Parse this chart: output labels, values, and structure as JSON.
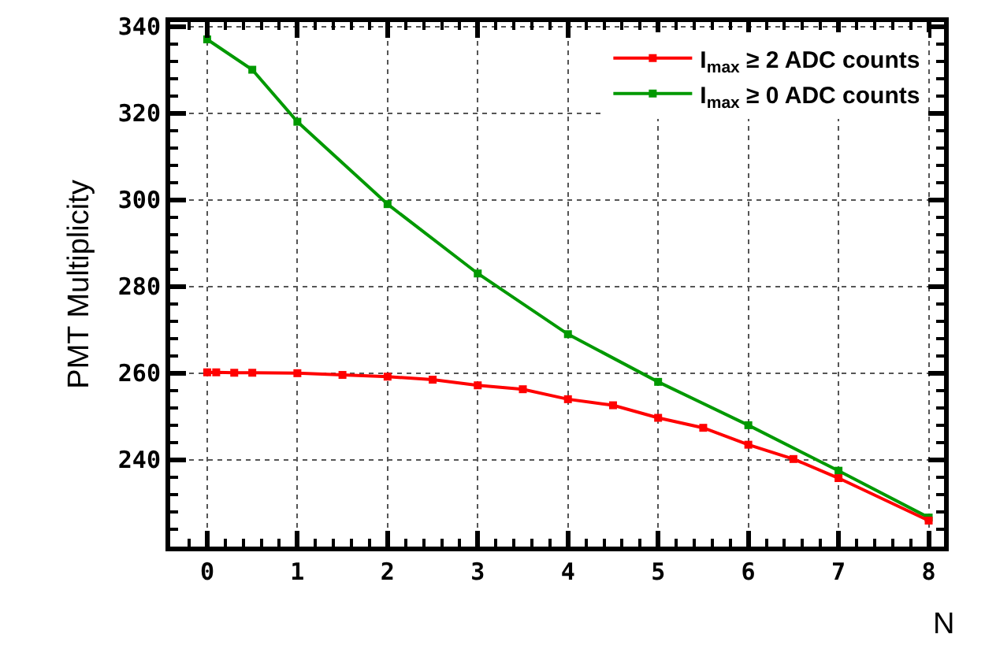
{
  "chart_data": {
    "type": "line",
    "xlabel": "N",
    "ylabel": "PMT Multiplicity",
    "xlim": [
      -0.41,
      8.17
    ],
    "xticks": [
      0,
      1,
      2,
      3,
      4,
      5,
      6,
      7,
      8
    ],
    "ylim": [
      220,
      341
    ],
    "yticks": [
      240,
      260,
      280,
      300,
      320,
      340
    ],
    "grid": true,
    "legend": "top right",
    "marker": "square",
    "line_style": "solid",
    "series": [
      {
        "name": "I$_{max}$ ≥ 2 ADC counts",
        "color": "#ff0000",
        "x": [
          0,
          0.1,
          0.3,
          0.5,
          1,
          1.5,
          2,
          2.5,
          3,
          3.5,
          4,
          4.5,
          5,
          5.5,
          6,
          6.5,
          7,
          8
        ],
        "values": [
          260.2,
          260.2,
          260.1,
          260.1,
          260,
          259.6,
          259.2,
          258.5,
          257.2,
          256.3,
          254,
          252.6,
          249.7,
          247.4,
          243.5,
          240.2,
          235.8,
          226
        ]
      },
      {
        "name": "I$_{max}$ ≥ 0 ADC counts",
        "color": "#009900",
        "x": [
          0,
          0.5,
          1,
          2,
          3,
          4,
          5,
          6,
          7,
          8
        ],
        "values": [
          337,
          330,
          318,
          299,
          283,
          269,
          258,
          248,
          237.5,
          226.7
        ]
      }
    ]
  }
}
